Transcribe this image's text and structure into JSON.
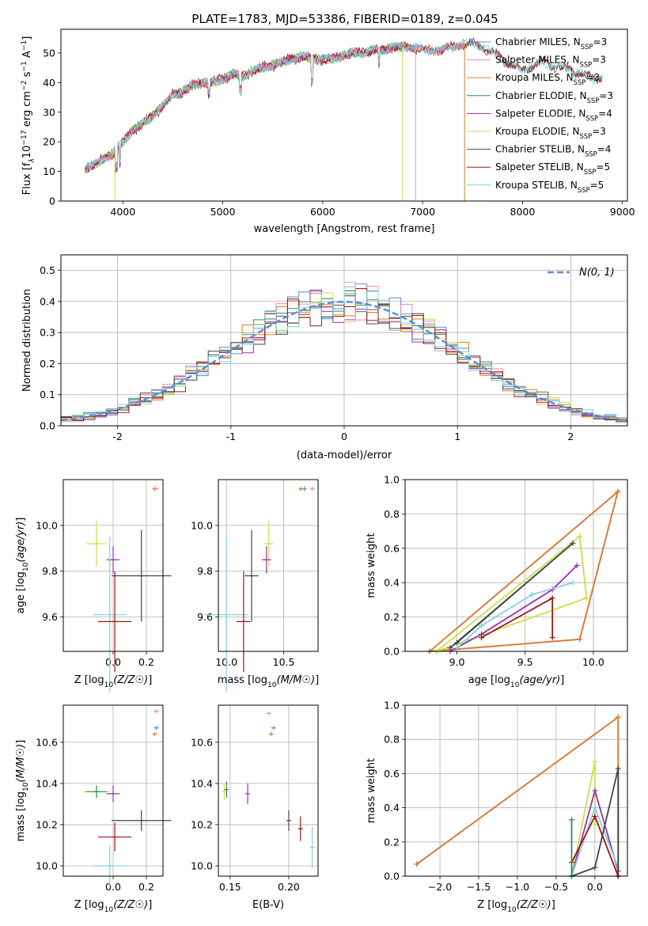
{
  "figure_title": "PLATE=1783, MJD=53386, FIBERID=0189, z=0.045",
  "models": [
    {
      "name": "Chabrier MILES",
      "nssp": "3",
      "color": "#5b8ed8"
    },
    {
      "name": "Salpeter MILES",
      "nssp": "3",
      "color": "#f08bb0"
    },
    {
      "name": "Kroupa MILES",
      "nssp": "3",
      "color": "#e07b2c"
    },
    {
      "name": "Chabrier ELODIE",
      "nssp": "3",
      "color": "#2e8b57"
    },
    {
      "name": "Salpeter ELODIE",
      "nssp": "4",
      "color": "#9b2fae"
    },
    {
      "name": "Kroupa ELODIE",
      "nssp": "3",
      "color": "#c8e04a"
    },
    {
      "name": "Chabrier STELIB",
      "nssp": "4",
      "color": "#454545"
    },
    {
      "name": "Salpeter STELIB",
      "nssp": "5",
      "color": "#a01515"
    },
    {
      "name": "Kroupa STELIB",
      "nssp": "5",
      "color": "#7fd3e0"
    }
  ],
  "legend_suffix": "N",
  "legend_sub": "SSP",
  "chart_data": [
    {
      "id": "spectrum",
      "type": "line",
      "xlabel": "wavelength [Angstrom, rest frame]",
      "ylabel": "Flux [f",
      "ylabel_sub": "λ",
      "ylabel_rest": "10",
      "ylabel_exp": "−17",
      "ylabel_units": " erg cm",
      "ylabel_units_exp": "−2",
      "ylabel_s": " s",
      "ylabel_s_exp": "−1",
      "ylabel_A": " A",
      "ylabel_A_exp": "−1",
      "ylabel_end": "]",
      "xlim": [
        3380,
        9050
      ],
      "ylim": [
        0,
        58
      ],
      "xticks": [
        4000,
        5000,
        6000,
        7000,
        8000,
        9000
      ],
      "yticks": [
        0,
        10,
        20,
        30,
        40,
        50
      ],
      "legend": "top-right",
      "grid": false,
      "continuum_x": [
        3620,
        3700,
        3800,
        3900,
        4000,
        4100,
        4200,
        4300,
        4400,
        4500,
        4600,
        4700,
        4800,
        4900,
        5000,
        5100,
        5200,
        5300,
        5400,
        5500,
        5600,
        5700,
        5800,
        5900,
        6000,
        6100,
        6200,
        6300,
        6400,
        6500,
        6600,
        6700,
        6800,
        6900,
        7000,
        7100,
        7200,
        7300,
        7400,
        7500,
        7600,
        7700,
        7800,
        7900,
        8000,
        8100,
        8200,
        8300,
        8400,
        8500,
        8600,
        8700,
        8800
      ],
      "continuum_y": [
        11,
        12,
        14,
        16,
        20,
        24,
        26,
        29,
        32,
        36,
        37,
        39,
        40,
        40,
        41,
        43,
        42,
        44,
        45,
        46,
        47,
        48,
        49,
        48,
        48,
        48,
        49,
        50,
        50,
        51,
        51,
        52,
        52,
        52,
        51,
        51,
        51,
        52,
        53,
        53,
        52,
        50,
        48,
        46,
        44,
        46,
        47,
        46,
        45,
        44,
        43,
        41,
        42
      ],
      "drops": [
        {
          "x": 3920,
          "model": "Kroupa ELODIE",
          "to": 0
        },
        {
          "x": 6800,
          "model": "Kroupa ELODIE",
          "to": 0
        },
        {
          "x": 6930,
          "model": "Salpeter MILES",
          "to": 0
        },
        {
          "x": 7420,
          "model": "Kroupa MILES",
          "to": 0
        }
      ]
    },
    {
      "id": "residuals",
      "type": "step-histogram",
      "xlabel": "(data-model)/error",
      "ylabel": "Normed distribution",
      "xlim": [
        -2.5,
        2.5
      ],
      "ylim": [
        0,
        0.55
      ],
      "xticks": [
        -2,
        -1,
        0,
        1,
        2
      ],
      "yticks": [
        0.0,
        0.1,
        0.2,
        0.3,
        0.4,
        0.5
      ],
      "bin_width": 0.1,
      "reference_curve": "normal(0,1)",
      "reference_label": "N(0, 1)",
      "reference_color": "#5b8ed8",
      "legend": "top-right",
      "grid": true
    },
    {
      "id": "age-vs-Z",
      "type": "errorbar",
      "xlabel": "Z [log10(Z/Z☉)]",
      "ylabel": "age  [log10(age/yr)]",
      "xlim": [
        -0.3,
        0.3
      ],
      "ylim": [
        9.45,
        10.2
      ],
      "xticks": [
        0.0,
        0.2
      ],
      "xtick_labels": [
        "0.0",
        "0.2"
      ],
      "yticks": [
        9.6,
        9.8,
        10.0
      ],
      "points": [
        {
          "model": "Kroupa ELODIE",
          "x": -0.1,
          "y": 9.92,
          "xerr": 0.06,
          "yerr": 0.1
        },
        {
          "model": "Salpeter ELODIE",
          "x": 0.0,
          "y": 9.85,
          "xerr": 0.04,
          "yerr": 0.06
        },
        {
          "model": "Chabrier STELIB",
          "x": 0.17,
          "y": 9.78,
          "xerr": 0.18,
          "yerr": 0.2
        },
        {
          "model": "Kroupa STELIB",
          "x": -0.02,
          "y": 9.61,
          "xerr": 0.1,
          "yerr": 0.34
        },
        {
          "model": "Salpeter STELIB",
          "x": 0.01,
          "y": 9.58,
          "xerr": 0.1,
          "yerr": 0.22
        },
        {
          "model": "Kroupa MILES",
          "x": 0.25,
          "y": 10.16,
          "xerr": 0.01,
          "yerr": 0.01
        },
        {
          "model": "Salpeter MILES",
          "x": 0.26,
          "y": 10.16,
          "xerr": 0.005,
          "yerr": 0.005
        }
      ]
    },
    {
      "id": "age-vs-mass",
      "type": "errorbar",
      "xlabel": "mass [log10(M/M☉)]",
      "ylabel": "",
      "xlim": [
        9.93,
        10.8
      ],
      "ylim": [
        9.45,
        10.2
      ],
      "xticks": [
        10.0,
        10.5
      ],
      "xtick_labels": [
        "10.0",
        "10.5"
      ],
      "yticks": [
        9.6,
        9.8,
        10.0
      ],
      "points": [
        {
          "model": "Kroupa ELODIE",
          "x": 10.37,
          "y": 9.92,
          "xerr": 0.04,
          "yerr": 0.1
        },
        {
          "model": "Salpeter ELODIE",
          "x": 10.35,
          "y": 9.85,
          "xerr": 0.04,
          "yerr": 0.06
        },
        {
          "model": "Chabrier STELIB",
          "x": 10.22,
          "y": 9.78,
          "xerr": 0.06,
          "yerr": 0.2
        },
        {
          "model": "Kroupa STELIB",
          "x": 10.0,
          "y": 9.61,
          "xerr": 0.19,
          "yerr": 0.34
        },
        {
          "model": "Salpeter STELIB",
          "x": 10.15,
          "y": 9.58,
          "xerr": 0.06,
          "yerr": 0.22
        },
        {
          "model": "Kroupa MILES",
          "x": 10.65,
          "y": 10.16,
          "xerr": 0.02,
          "yerr": 0.01
        },
        {
          "model": "Chabrier MILES",
          "x": 10.68,
          "y": 10.16,
          "xerr": 0.02,
          "yerr": 0.01
        },
        {
          "model": "Salpeter MILES",
          "x": 10.75,
          "y": 10.16,
          "xerr": 0.01,
          "yerr": 0.01
        }
      ]
    },
    {
      "id": "weight-vs-age",
      "type": "line-markers",
      "xlabel": "age  [log10(age/yr)]",
      "ylabel": "mass weight",
      "xlim": [
        8.62,
        10.25
      ],
      "ylim": [
        0,
        1
      ],
      "xticks": [
        9.0,
        9.5,
        10.0
      ],
      "xtick_labels": [
        "9.0",
        "9.5",
        "10.0"
      ],
      "yticks": [
        0.0,
        0.2,
        0.4,
        0.6,
        0.8,
        1.0
      ],
      "grid": true,
      "series": [
        {
          "model": "Chabrier MILES",
          "x": [
            8.8,
            9.9,
            10.18,
            8.8
          ],
          "y": [
            0.0,
            0.07,
            0.93,
            0.0
          ]
        },
        {
          "model": "Kroupa MILES",
          "x": [
            8.8,
            9.9,
            10.18,
            8.8
          ],
          "y": [
            0.0,
            0.07,
            0.93,
            0.0
          ]
        },
        {
          "model": "Kroupa ELODIE",
          "x": [
            8.85,
            9.9,
            9.95,
            8.85
          ],
          "y": [
            0.0,
            0.67,
            0.31,
            0.0
          ]
        },
        {
          "model": "Chabrier STELIB",
          "x": [
            8.95,
            9.85,
            9.0
          ],
          "y": [
            0.02,
            0.63,
            0.05
          ]
        },
        {
          "model": "Salpeter ELODIE",
          "x": [
            8.95,
            9.18,
            9.7,
            9.88
          ],
          "y": [
            0.0,
            0.1,
            0.36,
            0.5
          ]
        },
        {
          "model": "Kroupa STELIB",
          "x": [
            9.0,
            9.18,
            9.55,
            9.85
          ],
          "y": [
            0.02,
            0.15,
            0.33,
            0.4
          ]
        },
        {
          "model": "Salpeter STELIB",
          "x": [
            9.18,
            9.7,
            9.7
          ],
          "y": [
            0.08,
            0.31,
            0.08
          ]
        }
      ]
    },
    {
      "id": "mass-vs-Z",
      "type": "errorbar",
      "xlabel": "Z [log10(Z/Z☉)]",
      "ylabel": "mass [log10(M/M☉)]",
      "xlim": [
        -0.3,
        0.3
      ],
      "ylim": [
        9.95,
        10.78
      ],
      "xticks": [
        0.0,
        0.2
      ],
      "xtick_labels": [
        "0.0",
        "0.2"
      ],
      "yticks": [
        10.0,
        10.2,
        10.4,
        10.6
      ],
      "points": [
        {
          "model": "Kroupa ELODIE",
          "x": -0.1,
          "y": 10.36,
          "xerr": 0.08,
          "yerr": 0.03
        },
        {
          "model": "Chabrier ELODIE",
          "x": -0.1,
          "y": 10.36,
          "xerr": 0.06,
          "yerr": 0.03
        },
        {
          "model": "Salpeter ELODIE",
          "x": 0.0,
          "y": 10.35,
          "xerr": 0.04,
          "yerr": 0.04
        },
        {
          "model": "Chabrier STELIB",
          "x": 0.17,
          "y": 10.22,
          "xerr": 0.18,
          "yerr": 0.05
        },
        {
          "model": "Salpeter STELIB",
          "x": 0.01,
          "y": 10.14,
          "xerr": 0.1,
          "yerr": 0.07
        },
        {
          "model": "Kroupa STELIB",
          "x": -0.02,
          "y": 10.0,
          "xerr": 0.1,
          "yerr": 0.1
        },
        {
          "model": "Salpeter MILES",
          "x": 0.26,
          "y": 10.75,
          "xerr": 0.01,
          "yerr": 0.01
        },
        {
          "model": "Chabrier MILES",
          "x": 0.26,
          "y": 10.67,
          "xerr": 0.01,
          "yerr": 0.01
        },
        {
          "model": "Kroupa MILES",
          "x": 0.25,
          "y": 10.64,
          "xerr": 0.01,
          "yerr": 0.01
        }
      ]
    },
    {
      "id": "mass-vs-ebv",
      "type": "errorbar",
      "xlabel": "E(B-V)",
      "ylabel": "",
      "xlim": [
        0.14,
        0.225
      ],
      "ylim": [
        9.95,
        10.78
      ],
      "xticks": [
        0.15,
        0.2
      ],
      "xtick_labels": [
        "0.15",
        "0.20"
      ],
      "yticks": [
        10.0,
        10.2,
        10.4,
        10.6
      ],
      "points": [
        {
          "model": "Kroupa ELODIE",
          "x": 0.145,
          "y": 10.36,
          "xerr": 0.0,
          "yerr": 0.04
        },
        {
          "model": "Chabrier ELODIE",
          "x": 0.147,
          "y": 10.37,
          "xerr": 0.0,
          "yerr": 0.04
        },
        {
          "model": "Salpeter ELODIE",
          "x": 0.165,
          "y": 10.35,
          "xerr": 0.0,
          "yerr": 0.05
        },
        {
          "model": "Chabrier STELIB",
          "x": 0.2,
          "y": 10.22,
          "xerr": 0.0,
          "yerr": 0.05
        },
        {
          "model": "Salpeter STELIB",
          "x": 0.21,
          "y": 10.18,
          "xerr": 0.0,
          "yerr": 0.06
        },
        {
          "model": "Kroupa STELIB",
          "x": 0.22,
          "y": 10.09,
          "xerr": 0.0,
          "yerr": 0.1
        },
        {
          "model": "Salpeter MILES",
          "x": 0.183,
          "y": 10.74,
          "xerr": 0.0,
          "yerr": 0.01
        },
        {
          "model": "Chabrier MILES",
          "x": 0.187,
          "y": 10.67,
          "xerr": 0.0,
          "yerr": 0.01
        },
        {
          "model": "Kroupa MILES",
          "x": 0.185,
          "y": 10.64,
          "xerr": 0.0,
          "yerr": 0.01
        }
      ]
    },
    {
      "id": "weight-vs-Z",
      "type": "line-markers",
      "xlabel": "Z [log10(Z/Z☉)]",
      "ylabel": "mass weight",
      "xlim": [
        -2.45,
        0.42
      ],
      "ylim": [
        0,
        1
      ],
      "xticks": [
        -2.0,
        -1.5,
        -1.0,
        -0.5,
        0.0
      ],
      "xtick_labels": [
        "−2.0",
        "−1.5",
        "−1.0",
        "−0.5",
        "0.0"
      ],
      "yticks": [
        0.0,
        0.2,
        0.4,
        0.6,
        0.8,
        1.0
      ],
      "grid": true,
      "series": [
        {
          "model": "Chabrier MILES",
          "x": [
            -2.3,
            0.3,
            0.3
          ],
          "y": [
            0.07,
            0.93,
            0.0
          ]
        },
        {
          "model": "Kroupa MILES",
          "x": [
            -2.3,
            0.3,
            0.3
          ],
          "y": [
            0.07,
            0.93,
            0.0
          ]
        },
        {
          "model": "Kroupa ELODIE",
          "x": [
            -0.3,
            0.0,
            0.0
          ],
          "y": [
            0.0,
            0.67,
            0.3
          ]
        },
        {
          "model": "Salpeter ELODIE",
          "x": [
            -0.3,
            0.0,
            0.3
          ],
          "y": [
            0.0,
            0.5,
            0.03
          ]
        },
        {
          "model": "Kroupa STELIB",
          "x": [
            -0.3,
            0.0,
            0.3
          ],
          "y": [
            0.0,
            0.4,
            0.05
          ]
        },
        {
          "model": "Chabrier STELIB",
          "x": [
            -0.3,
            0.0,
            0.3,
            0.3
          ],
          "y": [
            0.0,
            0.05,
            0.63,
            0.0
          ]
        },
        {
          "model": "Salpeter STELIB",
          "x": [
            -0.3,
            0.0,
            0.3
          ],
          "y": [
            0.08,
            0.35,
            0.0
          ]
        },
        {
          "model": "Chabrier ELODIE",
          "x": [
            -0.3,
            -0.3
          ],
          "y": [
            0.0,
            0.33
          ]
        }
      ]
    }
  ]
}
